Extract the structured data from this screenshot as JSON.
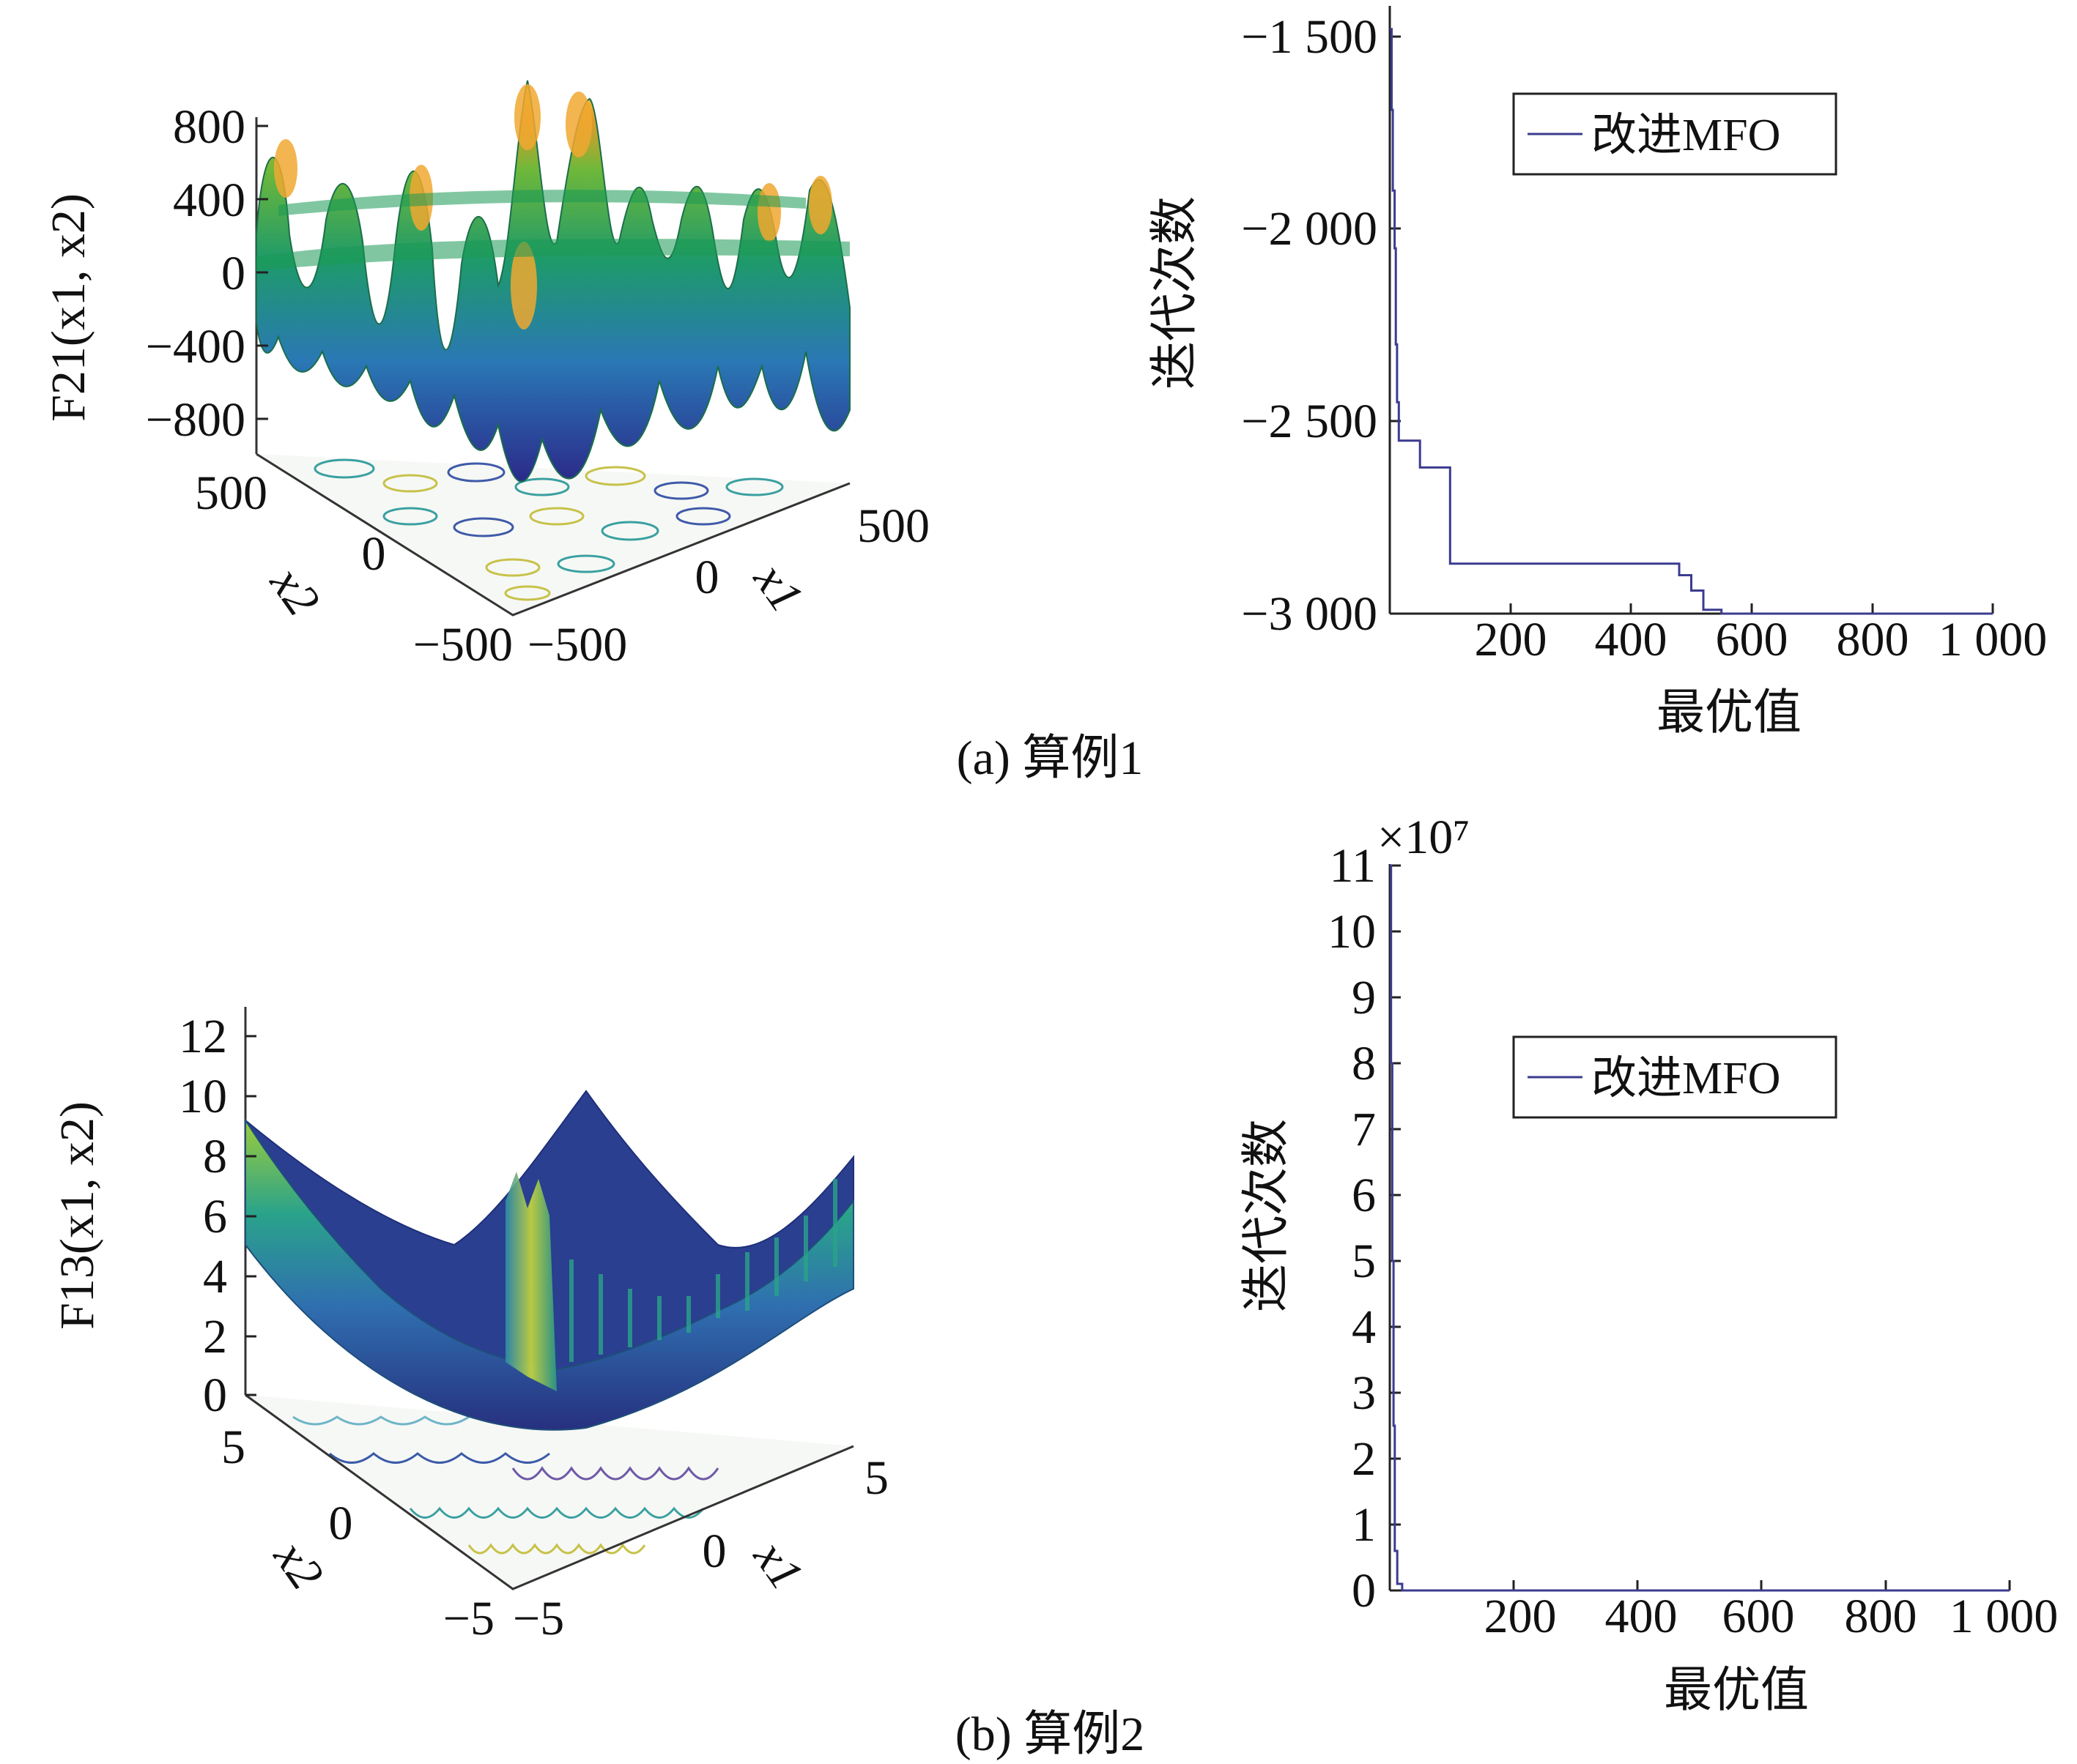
{
  "panels": [
    {
      "caption": "(a) 算例1",
      "surface": {
        "type": "surface3d",
        "zlabel": "F21(x1, x2)",
        "zticks": [
          "800",
          "400",
          "0",
          "−400",
          "−800"
        ],
        "x1label": "x1",
        "x2label": "x2",
        "x1ticks": [
          "−500",
          "0",
          "500"
        ],
        "x2ticks": [
          "500",
          "0",
          "−500"
        ]
      },
      "line": {
        "type": "line",
        "xlabel": "最优值",
        "ylabel": "迭代次数",
        "xticks": [
          "200",
          "400",
          "600",
          "800",
          "1 000"
        ],
        "yticks": [
          "−1 500",
          "−2 000",
          "−2 500",
          "−3 000"
        ],
        "legend": "改进MFO",
        "line_color": "#3b3b8f"
      }
    },
    {
      "caption": "(b) 算例2",
      "surface": {
        "type": "surface3d",
        "zlabel": "F13(x1, x2)",
        "zticks": [
          "12",
          "10",
          "8",
          "6",
          "4",
          "2",
          "0"
        ],
        "x1label": "x1",
        "x2label": "x2",
        "x1ticks": [
          "−5",
          "0",
          "5"
        ],
        "x2ticks": [
          "5",
          "0",
          "−5"
        ]
      },
      "line": {
        "type": "line",
        "xlabel": "最优值",
        "ylabel": "迭代次数",
        "multiplier": "×10⁷",
        "xticks": [
          "200",
          "400",
          "600",
          "800",
          "1 000"
        ],
        "yticks": [
          "11",
          "10",
          "9",
          "8",
          "7",
          "6",
          "5",
          "4",
          "3",
          "2",
          "1",
          "0"
        ],
        "legend": "改进MFO",
        "line_color": "#3b3b8f"
      }
    }
  ],
  "chart_data": [
    {
      "type": "line",
      "xlabel": "最优值",
      "ylabel": "迭代次数",
      "xlim": [
        0,
        1000
      ],
      "ylim": [
        -3000,
        -1450
      ],
      "series": [
        {
          "name": "改进MFO",
          "x": [
            0,
            3,
            5,
            8,
            10,
            12,
            15,
            50,
            80,
            100,
            460,
            480,
            500,
            520,
            550,
            1000
          ],
          "y": [
            -1480,
            -1690,
            -1900,
            -2050,
            -2300,
            -2450,
            -2550,
            -2620,
            -2620,
            -2870,
            -2870,
            -2900,
            -2940,
            -2990,
            -3000,
            -3000
          ]
        }
      ]
    },
    {
      "type": "line",
      "xlabel": "最优值",
      "ylabel": "迭代次数",
      "xlim": [
        0,
        1000
      ],
      "ylim": [
        0,
        11
      ],
      "y_multiplier": 10000000,
      "series": [
        {
          "name": "改进MFO",
          "x": [
            0,
            2,
            4,
            6,
            8,
            12,
            20,
            1000
          ],
          "y": [
            11,
            8,
            5,
            2.5,
            0.6,
            0.1,
            0,
            0
          ]
        }
      ]
    }
  ]
}
